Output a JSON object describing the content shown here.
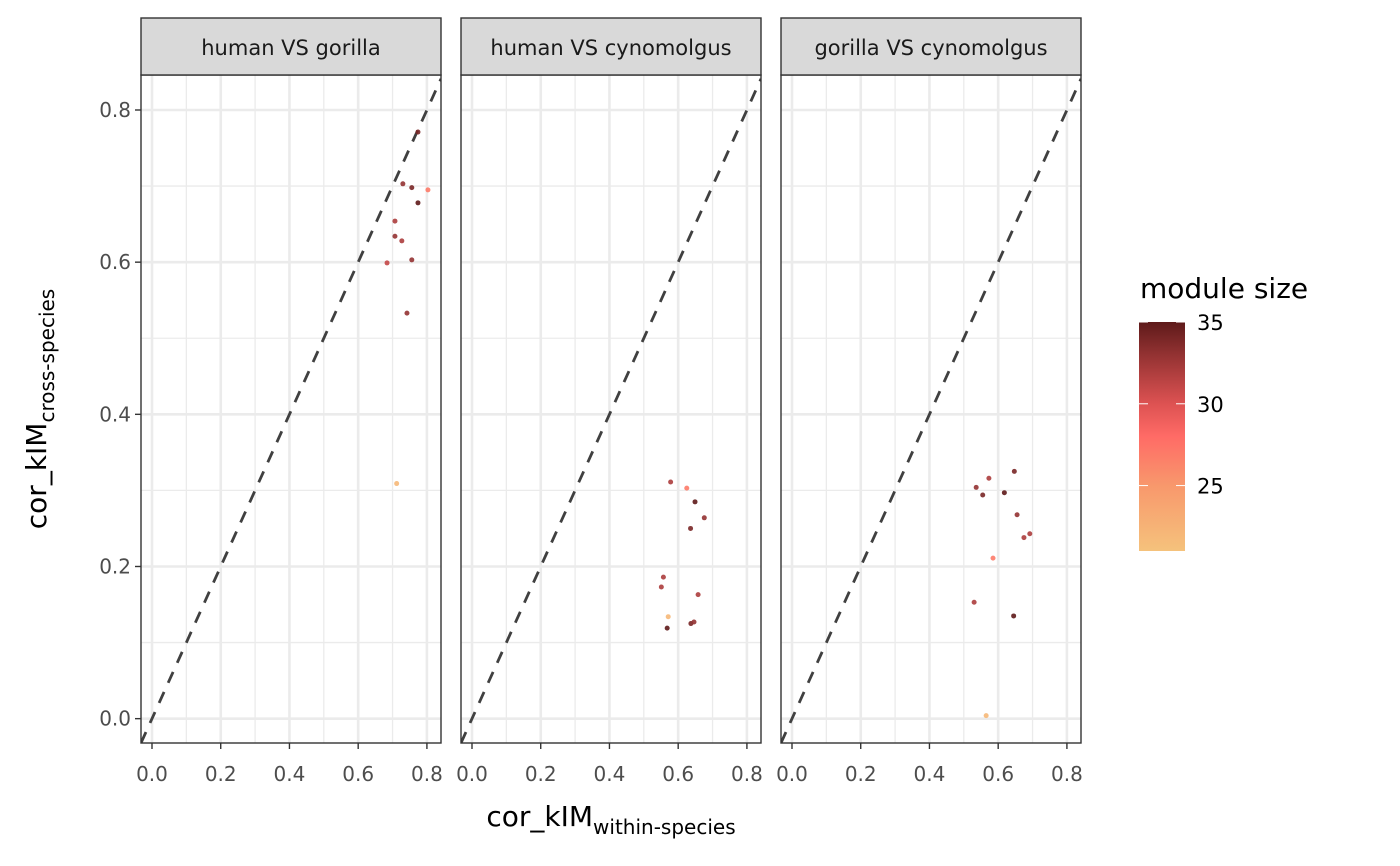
{
  "chart_data": {
    "type": "scatter",
    "xlabel": {
      "main": "cor_kIM",
      "sub": "within-species"
    },
    "ylabel": {
      "main": "cor_kIM",
      "sub": "cross-species"
    },
    "xlim": [
      -0.032,
      0.841
    ],
    "ylim": [
      -0.032,
      0.846
    ],
    "x_ticks": [
      "0.0",
      "0.2",
      "0.4",
      "0.6",
      "0.8"
    ],
    "y_ticks": [
      "0.0",
      "0.2",
      "0.4",
      "0.6",
      "0.8"
    ],
    "grid": true,
    "reference_line": "y = x (dashed)",
    "legend": {
      "title": "module size",
      "placement": "right",
      "range": [
        21,
        35
      ],
      "ticks": [
        "25",
        "30",
        "35"
      ],
      "colors": [
        {
          "v": 21,
          "c": "#f5c27c"
        },
        {
          "v": 25,
          "c": "#f8986c"
        },
        {
          "v": 28,
          "c": "#ff6b66"
        },
        {
          "v": 30,
          "c": "#dd5252"
        },
        {
          "v": 33,
          "c": "#933232"
        },
        {
          "v": 35,
          "c": "#5e1a1a"
        }
      ]
    },
    "panels": [
      {
        "title": "human VS gorilla",
        "points": [
          {
            "x": 0.774,
            "y": 0.771,
            "size": 34
          },
          {
            "x": 0.73,
            "y": 0.703,
            "size": 33
          },
          {
            "x": 0.756,
            "y": 0.698,
            "size": 34
          },
          {
            "x": 0.803,
            "y": 0.695,
            "size": 27
          },
          {
            "x": 0.774,
            "y": 0.678,
            "size": 35
          },
          {
            "x": 0.707,
            "y": 0.654,
            "size": 32
          },
          {
            "x": 0.707,
            "y": 0.634,
            "size": 33
          },
          {
            "x": 0.727,
            "y": 0.628,
            "size": 32
          },
          {
            "x": 0.684,
            "y": 0.599,
            "size": 31
          },
          {
            "x": 0.756,
            "y": 0.603,
            "size": 33
          },
          {
            "x": 0.742,
            "y": 0.533,
            "size": 33
          },
          {
            "x": 0.712,
            "y": 0.309,
            "size": 22
          }
        ]
      },
      {
        "title": "human VS cynomolgus",
        "points": [
          {
            "x": 0.578,
            "y": 0.311,
            "size": 32
          },
          {
            "x": 0.625,
            "y": 0.303,
            "size": 27
          },
          {
            "x": 0.649,
            "y": 0.285,
            "size": 35
          },
          {
            "x": 0.676,
            "y": 0.264,
            "size": 33
          },
          {
            "x": 0.636,
            "y": 0.25,
            "size": 34
          },
          {
            "x": 0.557,
            "y": 0.186,
            "size": 32
          },
          {
            "x": 0.551,
            "y": 0.173,
            "size": 32
          },
          {
            "x": 0.658,
            "y": 0.163,
            "size": 32
          },
          {
            "x": 0.571,
            "y": 0.134,
            "size": 22
          },
          {
            "x": 0.568,
            "y": 0.119,
            "size": 35
          },
          {
            "x": 0.637,
            "y": 0.125,
            "size": 34
          },
          {
            "x": 0.646,
            "y": 0.127,
            "size": 33
          }
        ]
      },
      {
        "title": "gorilla VS cynomolgus",
        "points": [
          {
            "x": 0.647,
            "y": 0.325,
            "size": 34
          },
          {
            "x": 0.573,
            "y": 0.316,
            "size": 32
          },
          {
            "x": 0.536,
            "y": 0.304,
            "size": 33
          },
          {
            "x": 0.555,
            "y": 0.294,
            "size": 34
          },
          {
            "x": 0.618,
            "y": 0.297,
            "size": 35
          },
          {
            "x": 0.655,
            "y": 0.268,
            "size": 33
          },
          {
            "x": 0.675,
            "y": 0.238,
            "size": 32
          },
          {
            "x": 0.692,
            "y": 0.243,
            "size": 32
          },
          {
            "x": 0.585,
            "y": 0.211,
            "size": 27
          },
          {
            "x": 0.53,
            "y": 0.153,
            "size": 32
          },
          {
            "x": 0.645,
            "y": 0.135,
            "size": 35
          },
          {
            "x": 0.565,
            "y": 0.004,
            "size": 22
          }
        ]
      }
    ]
  }
}
